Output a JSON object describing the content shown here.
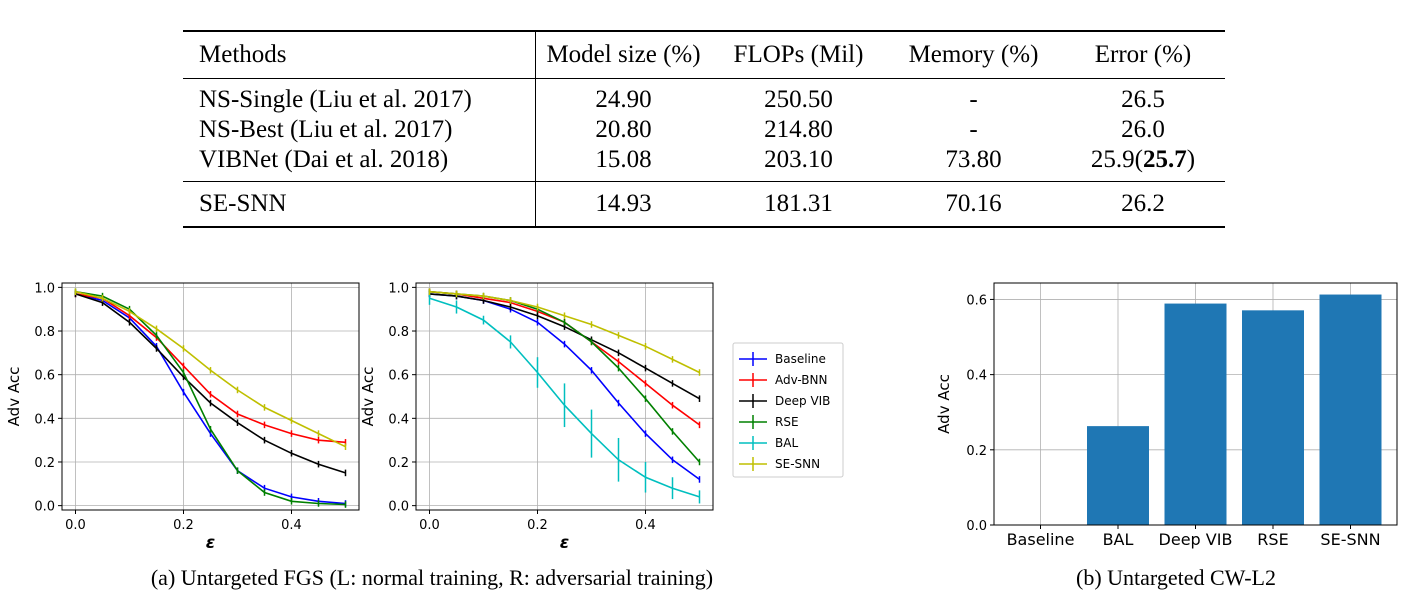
{
  "table": {
    "headers": [
      "Methods",
      "Model size (%)",
      "FLOPs (Mil)",
      "Memory (%)",
      "Error (%)"
    ],
    "rows": [
      {
        "method": "NS-Single (Liu et al. 2017)",
        "model_size": "24.90",
        "flops": "250.50",
        "memory": "-",
        "error": "26.5",
        "error_bold": ""
      },
      {
        "method": "NS-Best (Liu et al. 2017)",
        "model_size": "20.80",
        "flops": "214.80",
        "memory": "-",
        "error": "26.0",
        "error_bold": ""
      },
      {
        "method": "VIBNet (Dai et al. 2018)",
        "model_size": "15.08",
        "flops": "203.10",
        "memory": "73.80",
        "error": "25.9(",
        "error_bold": "25.7",
        "error_suffix": ")"
      }
    ],
    "ours": {
      "method": "SE-SNN",
      "model_size": "14.93",
      "flops": "181.31",
      "memory": "70.16",
      "error": "26.2"
    }
  },
  "captions": {
    "a": "(a) Untargeted FGS (L: normal training, R: adversarial training)",
    "b": "(b) Untargeted CW-L2"
  },
  "chart_data": [
    {
      "type": "line",
      "xlabel": "ε",
      "ylabel": "Adv Acc",
      "xlim": [
        -0.025,
        0.525
      ],
      "ylim": [
        -0.02,
        1.02
      ],
      "xticks": [
        0.0,
        0.2,
        0.4
      ],
      "yticks": [
        0.0,
        0.2,
        0.4,
        0.6,
        0.8,
        1.0
      ],
      "grid": true,
      "x": [
        0.0,
        0.05,
        0.1,
        0.15,
        0.2,
        0.25,
        0.3,
        0.35,
        0.4,
        0.45,
        0.5
      ],
      "series": [
        {
          "name": "Baseline",
          "color": "#0000ff",
          "values": [
            0.97,
            0.94,
            0.86,
            0.73,
            0.52,
            0.33,
            0.16,
            0.08,
            0.04,
            0.02,
            0.01
          ]
        },
        {
          "name": "Adv-BNN",
          "color": "#ff0000",
          "values": [
            0.97,
            0.95,
            0.87,
            0.77,
            0.64,
            0.51,
            0.42,
            0.37,
            0.33,
            0.3,
            0.29
          ]
        },
        {
          "name": "Deep VIB",
          "color": "#000000",
          "values": [
            0.97,
            0.93,
            0.84,
            0.72,
            0.59,
            0.47,
            0.38,
            0.3,
            0.24,
            0.19,
            0.15
          ]
        },
        {
          "name": "RSE",
          "color": "#008000",
          "values": [
            0.98,
            0.96,
            0.9,
            0.78,
            0.61,
            0.35,
            0.16,
            0.06,
            0.02,
            0.01,
            0.005
          ]
        },
        {
          "name": "SE-SNN",
          "color": "#bfbf00",
          "values": [
            0.98,
            0.95,
            0.89,
            0.81,
            0.72,
            0.62,
            0.53,
            0.45,
            0.39,
            0.33,
            0.27
          ]
        }
      ]
    },
    {
      "type": "line",
      "xlabel": "ε",
      "ylabel": "Adv Acc",
      "xlim": [
        -0.025,
        0.525
      ],
      "ylim": [
        -0.02,
        1.02
      ],
      "xticks": [
        0.0,
        0.2,
        0.4
      ],
      "yticks": [
        0.0,
        0.2,
        0.4,
        0.6,
        0.8,
        1.0
      ],
      "grid": true,
      "legend": "right",
      "x": [
        0.0,
        0.05,
        0.1,
        0.15,
        0.2,
        0.25,
        0.3,
        0.35,
        0.4,
        0.45,
        0.5
      ],
      "series": [
        {
          "name": "Baseline",
          "color": "#0000ff",
          "values": [
            0.97,
            0.96,
            0.94,
            0.9,
            0.84,
            0.74,
            0.62,
            0.47,
            0.33,
            0.21,
            0.12
          ]
        },
        {
          "name": "Adv-BNN",
          "color": "#ff0000",
          "values": [
            0.98,
            0.97,
            0.95,
            0.93,
            0.89,
            0.84,
            0.75,
            0.66,
            0.56,
            0.46,
            0.37
          ]
        },
        {
          "name": "Deep VIB",
          "color": "#000000",
          "values": [
            0.97,
            0.96,
            0.94,
            0.91,
            0.87,
            0.82,
            0.76,
            0.7,
            0.63,
            0.56,
            0.49
          ]
        },
        {
          "name": "RSE",
          "color": "#008000",
          "values": [
            0.98,
            0.97,
            0.96,
            0.94,
            0.9,
            0.84,
            0.75,
            0.63,
            0.49,
            0.34,
            0.2
          ]
        },
        {
          "name": "BAL",
          "color": "#00bfbf",
          "values": [
            0.95,
            0.91,
            0.85,
            0.75,
            0.61,
            0.46,
            0.33,
            0.21,
            0.13,
            0.08,
            0.04
          ],
          "errors": [
            0.03,
            0.03,
            0.02,
            0.03,
            0.07,
            0.1,
            0.11,
            0.1,
            0.07,
            0.05,
            0.03
          ]
        },
        {
          "name": "SE-SNN",
          "color": "#bfbf00",
          "values": [
            0.98,
            0.97,
            0.96,
            0.94,
            0.91,
            0.87,
            0.83,
            0.78,
            0.73,
            0.67,
            0.61
          ]
        }
      ]
    },
    {
      "type": "bar",
      "ylabel": "Adv Acc",
      "categories": [
        "Baseline",
        "BAL",
        "Deep VIB",
        "RSE",
        "SE-SNN"
      ],
      "values": [
        0.0,
        0.263,
        0.589,
        0.571,
        0.613
      ],
      "color": "#1f77b4",
      "ylim": [
        0,
        0.6437
      ],
      "yticks": [
        0.0,
        0.2,
        0.4,
        0.6
      ],
      "grid": true
    }
  ]
}
